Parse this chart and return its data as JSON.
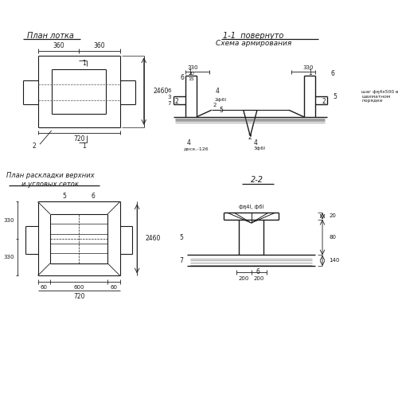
{
  "bg_color": "#ffffff",
  "line_color": "#1a1a1a",
  "title1": "План лотка",
  "title2": "1-1  повернуто",
  "title3": "Схема армирования",
  "title4": "План раскладки верхних\nи угловых сеток",
  "title5": "2-2",
  "dim_360": "360",
  "dim_720": "720",
  "dim_2460": "2460",
  "dim_330": "330",
  "dim_600": "600",
  "dim_60": "60",
  "dim_200": "200",
  "dim_140": "140",
  "dim_20": "20",
  "dim_80": "80",
  "label_shag": "шаг фҕ4х500 в\nшахматном\nпорядке",
  "label_phi": "фҕ4I, ф6I",
  "label_dosk": "доск.-126",
  "label_2phi6I": "2ф6I",
  "label_3phi6I": "3ф6I"
}
